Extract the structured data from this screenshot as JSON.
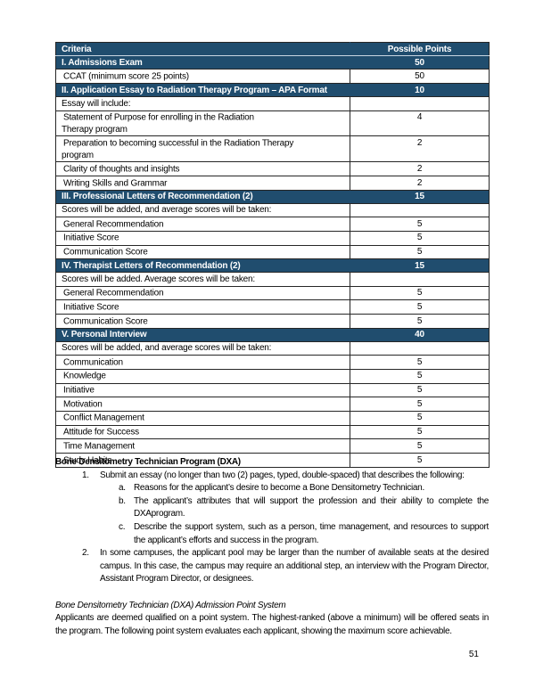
{
  "colors": {
    "section_fill": "#204D6E",
    "section_text": "#ffffff",
    "border": "#262626"
  },
  "table": {
    "columns": [
      "Criteria",
      "Possible Points"
    ],
    "rows": [
      {
        "type": "section",
        "label": "I. Admissions Exam",
        "points": "50"
      },
      {
        "type": "bullet",
        "label": "CCAT (minimum score 25 points)",
        "points": "50"
      },
      {
        "type": "section",
        "label": "II. Application Essay to Radiation Therapy Program – APA Format",
        "points": "10"
      },
      {
        "type": "sub",
        "label": "Essay will include:",
        "points": ""
      },
      {
        "type": "bullet",
        "label": "Statement of Purpose for enrolling in the Radiation\nTherapy program",
        "points": "4"
      },
      {
        "type": "bullet",
        "label": "Preparation to becoming successful in the Radiation Therapy\nprogram",
        "points": "2"
      },
      {
        "type": "bullet",
        "label": "Clarity of thoughts and insights",
        "points": "2"
      },
      {
        "type": "bullet",
        "label": "Writing Skills and Grammar",
        "points": "2"
      },
      {
        "type": "section",
        "label": "III. Professional Letters of Recommendation (2)",
        "points": "15"
      },
      {
        "type": "sub",
        "label": "Scores will be added, and average scores will be taken:",
        "points": ""
      },
      {
        "type": "bullet",
        "label": "General Recommendation",
        "points": "5"
      },
      {
        "type": "bullet",
        "label": "Initiative Score",
        "points": "5"
      },
      {
        "type": "bullet",
        "label": "Communication Score",
        "points": "5"
      },
      {
        "type": "section",
        "label": "IV. Therapist Letters of Recommendation (2)",
        "points": "15"
      },
      {
        "type": "sub",
        "label": "Scores will be added. Average scores will be taken:",
        "points": ""
      },
      {
        "type": "bullet",
        "label": "General Recommendation",
        "points": "5"
      },
      {
        "type": "bullet",
        "label": "Initiative Score",
        "points": "5"
      },
      {
        "type": "bullet",
        "label": "Communication Score",
        "points": "5"
      },
      {
        "type": "section",
        "label": "V. Personal Interview",
        "points": "40"
      },
      {
        "type": "sub",
        "label": "Scores will be added, and average scores will be taken:",
        "points": ""
      },
      {
        "type": "bullet",
        "label": "Communication",
        "points": "5"
      },
      {
        "type": "bullet",
        "label": "Knowledge",
        "points": "5"
      },
      {
        "type": "bullet",
        "label": "Initiative",
        "points": "5"
      },
      {
        "type": "bullet",
        "label": "Motivation",
        "points": "5"
      },
      {
        "type": "bullet",
        "label": "Conflict Management",
        "points": "5"
      },
      {
        "type": "bullet",
        "label": "Attitude for Success",
        "points": "5"
      },
      {
        "type": "bullet",
        "label": "Time Management",
        "points": "5"
      },
      {
        "type": "bullet",
        "label": "Study Habits",
        "points": "5"
      }
    ]
  },
  "body": {
    "heading": "Bone Densitometry Technician Program (DXA)",
    "items": [
      {
        "marker": "1.",
        "level": 1,
        "text": "Submit an essay (no longer than two (2) pages, typed, double-spaced) that describes the following:"
      },
      {
        "marker": "a.",
        "level": 2,
        "text": "Reasons for the applicant’s desire to become a Bone Densitometry Technician."
      },
      {
        "marker": "b.",
        "level": 2,
        "text": "The applicant’s attributes that will support the profession and their ability to complete the DXAprogram."
      },
      {
        "marker": "c.",
        "level": 2,
        "text": "Describe the support system, such as a person, time management, and resources to support the applicant’s efforts and success in the program."
      },
      {
        "marker": "2.",
        "level": 1,
        "text": "In some campuses, the applicant pool may be larger than the number of available seats at the desired campus. In this case, the campus may require an additional step, an interview with the Program Director, Assistant Program Director, or designees."
      }
    ],
    "subheading_italic": "Bone Densitometry Technician (DXA) Admission Point System",
    "paragraph": "Applicants are deemed qualified on a point system. The highest-ranked (above a minimum) will be offered seats in the program. The following point system evaluates each applicant, showing the maximum score achievable."
  },
  "page": {
    "number": "51"
  }
}
